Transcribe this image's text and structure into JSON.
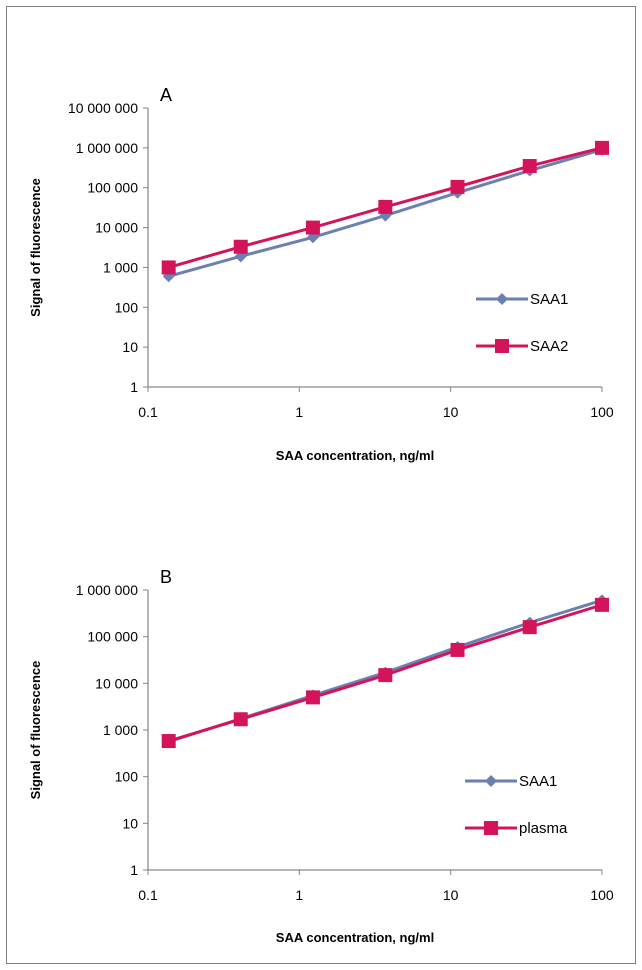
{
  "chart_data": [
    {
      "type": "line",
      "panel_label": "A",
      "xlabel": "SAA concentration, ng/ml",
      "ylabel": "Signal of fluorescence",
      "x_scale": "log",
      "y_scale": "log",
      "xlim": [
        0.1,
        100
      ],
      "ylim": [
        1,
        10000000
      ],
      "x_tick_labels": [
        "0.1",
        "1",
        "10",
        "100"
      ],
      "y_tick_labels": [
        "1",
        "10",
        "100",
        "1 000",
        "10 000",
        "100 000",
        "1 000 000",
        "10 000 000"
      ],
      "grid": false,
      "legend_position": "right",
      "x": [
        0.137,
        0.41,
        1.23,
        3.7,
        11.1,
        33.3,
        100
      ],
      "series": [
        {
          "name": "SAA1",
          "marker": "diamond",
          "color": "#6b7fb1",
          "values": [
            600,
            1900,
            5700,
            20000,
            75000,
            270000,
            900000
          ]
        },
        {
          "name": "SAA2",
          "marker": "square",
          "color": "#d4145a",
          "values": [
            1000,
            3300,
            10000,
            33000,
            105000,
            350000,
            1000000
          ]
        }
      ]
    },
    {
      "type": "line",
      "panel_label": "B",
      "xlabel": "SAA concentration, ng/ml",
      "ylabel": "Signal of fluorescence",
      "x_scale": "log",
      "y_scale": "log",
      "xlim": [
        0.1,
        100
      ],
      "ylim": [
        1,
        1000000
      ],
      "x_tick_labels": [
        "0.1",
        "1",
        "10",
        "100"
      ],
      "y_tick_labels": [
        "1",
        "10",
        "100",
        "1 000",
        "10 000",
        "100 000",
        "1 000 000"
      ],
      "grid": false,
      "legend_position": "right",
      "x": [
        0.137,
        0.41,
        1.23,
        3.7,
        11.1,
        33.3,
        100
      ],
      "series": [
        {
          "name": "SAA1",
          "marker": "diamond",
          "color": "#6b7fb1",
          "values": [
            560,
            1750,
            5500,
            17000,
            60000,
            200000,
            600000
          ]
        },
        {
          "name": "plasma",
          "marker": "square",
          "color": "#d4145a",
          "values": [
            580,
            1700,
            5000,
            15000,
            52000,
            160000,
            480000
          ]
        }
      ]
    }
  ]
}
